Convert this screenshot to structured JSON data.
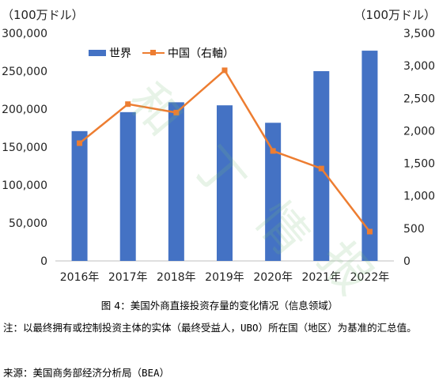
{
  "unit_left": "（100万ドル）",
  "unit_right": "（100万ドル）",
  "legend": {
    "world": "世界",
    "china": "中国（右軸）"
  },
  "caption": "图 4：美国外商直接投资存量的变化情况（信息领域）",
  "note": "注：以最终拥有或控制投资主体的实体（最终受益人，UBO）所在国（地区）为基准的汇总值。",
  "source": "来源：美国商务部经济分析局（BEA）",
  "colors": {
    "bar": "#4472C4",
    "line": "#ED7D31"
  },
  "chart_data": {
    "type": "bar",
    "categories": [
      "2016年",
      "2017年",
      "2018年",
      "2019年",
      "2020年",
      "2021年",
      "2022年"
    ],
    "series": [
      {
        "name": "世界",
        "type": "bar",
        "axis": "left",
        "values": [
          171000,
          196000,
          209000,
          205000,
          182000,
          250000,
          277000
        ]
      },
      {
        "name": "中国（右軸）",
        "type": "line",
        "axis": "right",
        "values": [
          1810,
          2410,
          2280,
          2930,
          1690,
          1420,
          450
        ]
      }
    ],
    "y_left": {
      "min": 0,
      "max": 300000,
      "step": 50000,
      "tick_labels": [
        "0",
        "50,000",
        "100,000",
        "150,000",
        "200,000",
        "250,000",
        "300,000"
      ]
    },
    "y_right": {
      "min": 0,
      "max": 3500,
      "step": 500,
      "tick_labels": [
        "0",
        "500",
        "1,000",
        "1,500",
        "2,000",
        "2,500",
        "3,000",
        "3,500"
      ]
    },
    "legend_position": "top-left",
    "grid": false
  }
}
